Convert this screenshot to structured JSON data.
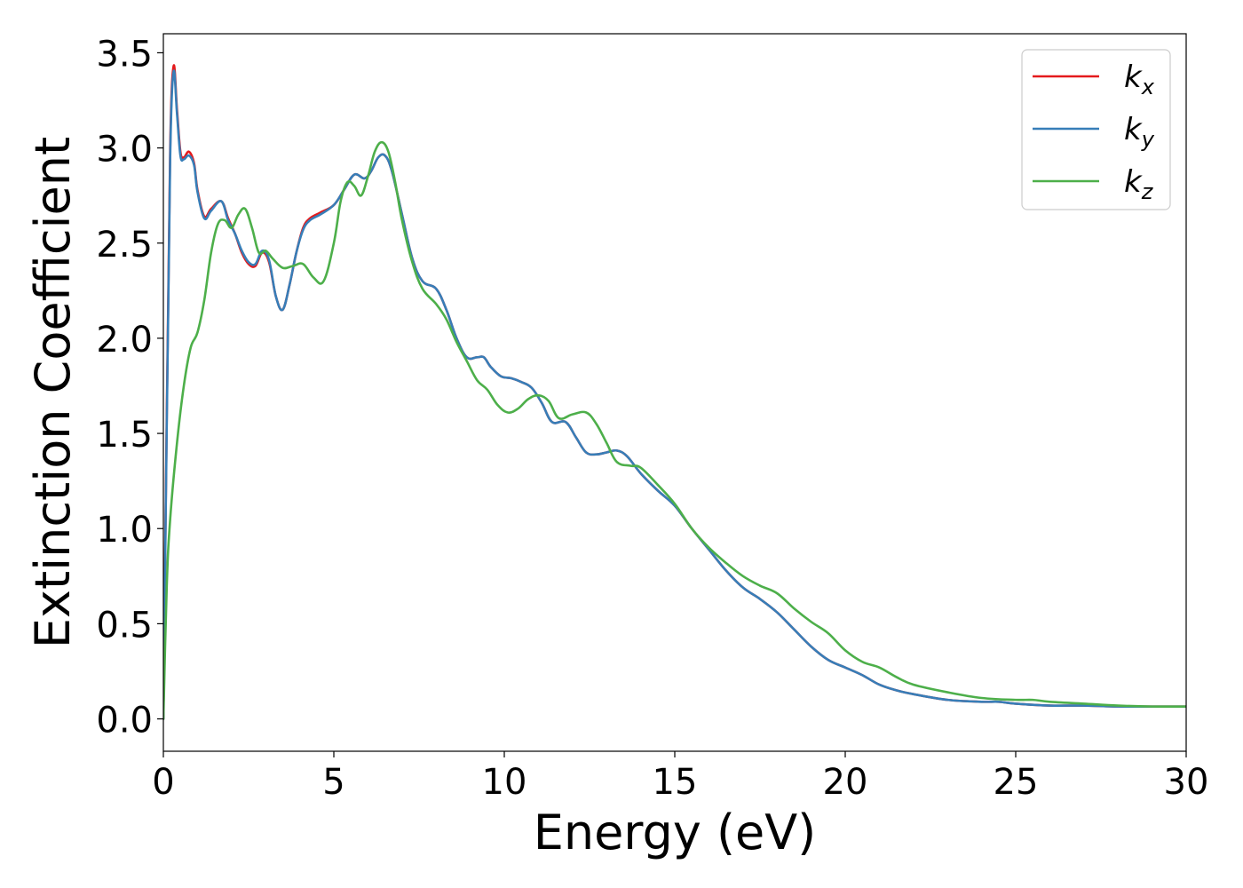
{
  "chart_data": {
    "type": "line",
    "title": "",
    "xlabel": "Energy (eV)",
    "ylabel": "Extinction Coefficient",
    "xlim": [
      0,
      30
    ],
    "ylim": [
      -0.17,
      3.6
    ],
    "xticks": [
      0,
      5,
      10,
      15,
      20,
      25,
      30
    ],
    "yticks": [
      0.0,
      0.5,
      1.0,
      1.5,
      2.0,
      2.5,
      3.0,
      3.5
    ],
    "xtick_labels": [
      "0",
      "5",
      "10",
      "15",
      "20",
      "25",
      "30"
    ],
    "ytick_labels": [
      "0.0",
      "0.5",
      "1.0",
      "1.5",
      "2.0",
      "2.5",
      "3.0",
      "3.5"
    ],
    "grid": false,
    "legend": {
      "placement": "top-right"
    },
    "series": [
      {
        "name": "k_x",
        "label_main": "k",
        "label_sub": "x",
        "color": "#e41a1c",
        "x": [
          0,
          0.1,
          0.2,
          0.3,
          0.4,
          0.5,
          0.6,
          0.75,
          0.9,
          1.0,
          1.2,
          1.4,
          1.7,
          1.9,
          2.1,
          2.3,
          2.5,
          2.7,
          2.9,
          3.1,
          3.3,
          3.5,
          3.7,
          3.9,
          4.1,
          4.3,
          4.6,
          5.0,
          5.3,
          5.6,
          5.9,
          6.1,
          6.3,
          6.5,
          6.7,
          7.0,
          7.3,
          7.6,
          8.0,
          8.3,
          8.6,
          8.9,
          9.2,
          9.4,
          9.6,
          9.9,
          10.2,
          10.5,
          10.8,
          11.1,
          11.4,
          11.8,
          12.1,
          12.4,
          12.7,
          13.0,
          13.3,
          13.6,
          14.0,
          14.5,
          15.0,
          15.5,
          16.0,
          16.5,
          17.0,
          17.5,
          18.0,
          18.5,
          19.0,
          19.5,
          20.0,
          20.5,
          21.0,
          21.5,
          22.0,
          23.0,
          24.0,
          24.5,
          25.0,
          26.0,
          27.0,
          28.0,
          29.0,
          30.0
        ],
        "y": [
          0.0,
          1.6,
          3.0,
          3.43,
          3.2,
          2.98,
          2.95,
          2.98,
          2.92,
          2.78,
          2.64,
          2.68,
          2.72,
          2.63,
          2.55,
          2.45,
          2.39,
          2.38,
          2.45,
          2.4,
          2.22,
          2.15,
          2.28,
          2.45,
          2.58,
          2.63,
          2.66,
          2.7,
          2.78,
          2.86,
          2.84,
          2.88,
          2.95,
          2.96,
          2.88,
          2.65,
          2.42,
          2.3,
          2.26,
          2.15,
          2.0,
          1.9,
          1.9,
          1.9,
          1.85,
          1.8,
          1.79,
          1.77,
          1.74,
          1.66,
          1.56,
          1.56,
          1.48,
          1.4,
          1.39,
          1.4,
          1.41,
          1.38,
          1.29,
          1.2,
          1.12,
          1.0,
          0.89,
          0.78,
          0.69,
          0.63,
          0.56,
          0.47,
          0.38,
          0.31,
          0.27,
          0.23,
          0.18,
          0.15,
          0.13,
          0.1,
          0.09,
          0.09,
          0.08,
          0.07,
          0.07,
          0.065,
          0.065,
          0.065
        ]
      },
      {
        "name": "k_y",
        "label_main": "k",
        "label_sub": "y",
        "color": "#377eb8",
        "x": [
          0,
          0.1,
          0.2,
          0.3,
          0.4,
          0.5,
          0.6,
          0.75,
          0.9,
          1.0,
          1.2,
          1.4,
          1.7,
          1.9,
          2.1,
          2.3,
          2.5,
          2.7,
          2.9,
          3.1,
          3.3,
          3.5,
          3.7,
          3.9,
          4.1,
          4.3,
          4.6,
          5.0,
          5.3,
          5.6,
          5.9,
          6.1,
          6.3,
          6.5,
          6.7,
          7.0,
          7.3,
          7.6,
          8.0,
          8.3,
          8.6,
          8.9,
          9.2,
          9.4,
          9.6,
          9.9,
          10.2,
          10.5,
          10.8,
          11.1,
          11.4,
          11.8,
          12.1,
          12.4,
          12.7,
          13.0,
          13.3,
          13.6,
          14.0,
          14.5,
          15.0,
          15.5,
          16.0,
          16.5,
          17.0,
          17.5,
          18.0,
          18.5,
          19.0,
          19.5,
          20.0,
          20.5,
          21.0,
          21.5,
          22.0,
          23.0,
          24.0,
          24.5,
          25.0,
          26.0,
          27.0,
          28.0,
          29.0,
          30.0
        ],
        "y": [
          0.0,
          1.55,
          2.95,
          3.4,
          3.18,
          2.96,
          2.94,
          2.96,
          2.91,
          2.77,
          2.63,
          2.67,
          2.72,
          2.62,
          2.55,
          2.46,
          2.4,
          2.39,
          2.46,
          2.41,
          2.22,
          2.15,
          2.28,
          2.45,
          2.57,
          2.62,
          2.65,
          2.7,
          2.78,
          2.86,
          2.84,
          2.88,
          2.95,
          2.96,
          2.88,
          2.65,
          2.42,
          2.3,
          2.26,
          2.15,
          2.0,
          1.9,
          1.9,
          1.9,
          1.85,
          1.8,
          1.79,
          1.77,
          1.74,
          1.66,
          1.56,
          1.56,
          1.48,
          1.4,
          1.39,
          1.4,
          1.41,
          1.38,
          1.29,
          1.2,
          1.12,
          1.0,
          0.89,
          0.78,
          0.69,
          0.63,
          0.56,
          0.47,
          0.38,
          0.31,
          0.27,
          0.23,
          0.18,
          0.15,
          0.13,
          0.1,
          0.09,
          0.09,
          0.08,
          0.07,
          0.07,
          0.065,
          0.065,
          0.065
        ]
      },
      {
        "name": "k_z",
        "label_main": "k",
        "label_sub": "z",
        "color": "#4daf4a",
        "x": [
          0,
          0.1,
          0.2,
          0.4,
          0.6,
          0.8,
          1.0,
          1.2,
          1.4,
          1.6,
          1.8,
          2.0,
          2.2,
          2.4,
          2.6,
          2.8,
          3.0,
          3.2,
          3.5,
          3.8,
          4.1,
          4.4,
          4.7,
          5.0,
          5.2,
          5.4,
          5.6,
          5.8,
          6.0,
          6.2,
          6.4,
          6.6,
          6.8,
          7.0,
          7.3,
          7.6,
          8.0,
          8.3,
          8.6,
          8.9,
          9.2,
          9.5,
          9.8,
          10.1,
          10.4,
          10.7,
          11.0,
          11.3,
          11.6,
          12.0,
          12.4,
          12.7,
          13.0,
          13.3,
          13.7,
          14.0,
          14.5,
          15.0,
          15.5,
          16.0,
          16.5,
          17.0,
          17.5,
          18.0,
          18.5,
          19.0,
          19.5,
          20.0,
          20.5,
          21.0,
          21.5,
          22.0,
          23.0,
          24.0,
          25.0,
          25.5,
          26.0,
          27.0,
          28.0,
          29.0,
          30.0
        ],
        "y": [
          0.0,
          0.7,
          1.05,
          1.45,
          1.75,
          1.95,
          2.03,
          2.2,
          2.45,
          2.6,
          2.62,
          2.58,
          2.65,
          2.68,
          2.58,
          2.45,
          2.46,
          2.42,
          2.37,
          2.38,
          2.39,
          2.32,
          2.3,
          2.5,
          2.72,
          2.82,
          2.8,
          2.75,
          2.85,
          2.98,
          3.03,
          2.98,
          2.82,
          2.62,
          2.4,
          2.26,
          2.18,
          2.1,
          1.98,
          1.88,
          1.78,
          1.73,
          1.65,
          1.61,
          1.63,
          1.68,
          1.7,
          1.67,
          1.58,
          1.6,
          1.61,
          1.55,
          1.45,
          1.35,
          1.33,
          1.32,
          1.23,
          1.13,
          1.0,
          0.9,
          0.82,
          0.75,
          0.7,
          0.66,
          0.58,
          0.51,
          0.45,
          0.36,
          0.3,
          0.27,
          0.22,
          0.18,
          0.14,
          0.11,
          0.1,
          0.1,
          0.09,
          0.08,
          0.07,
          0.065,
          0.065
        ]
      }
    ]
  }
}
